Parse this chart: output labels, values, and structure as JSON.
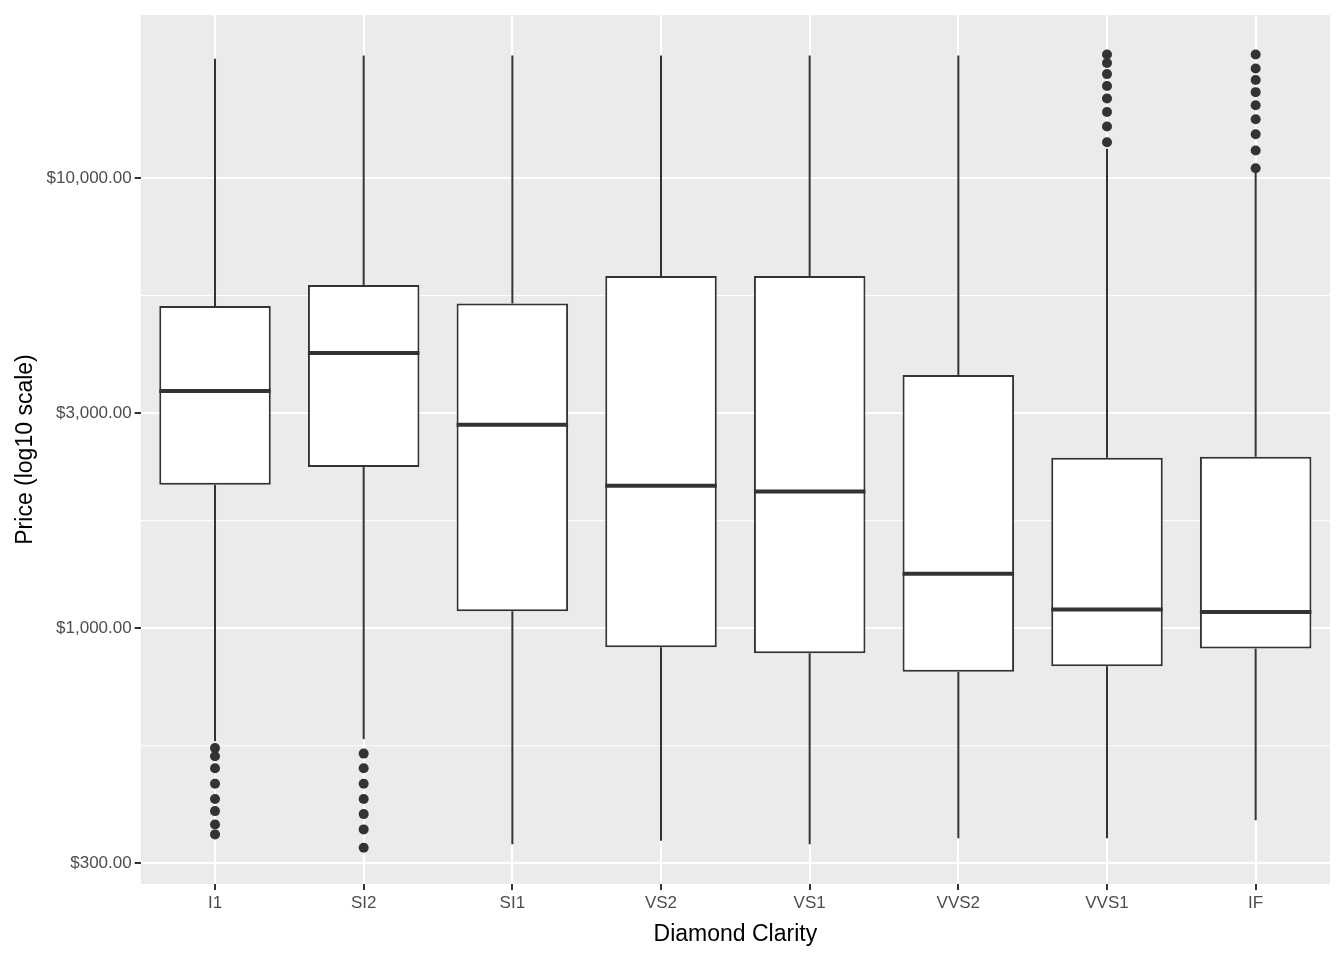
{
  "chart_data": {
    "type": "box",
    "xlabel": "Diamond Clarity",
    "ylabel": "Price (log10 scale)",
    "categories": [
      "I1",
      "SI2",
      "SI1",
      "VS2",
      "VS1",
      "VVS2",
      "VVS1",
      "IF"
    ],
    "boxes": [
      {
        "low": 560,
        "q1": 2080,
        "median": 3360,
        "q3": 5190,
        "high": 18400,
        "outliers": [
          541,
          519,
          488,
          451,
          417,
          392,
          366,
          348
        ]
      },
      {
        "low": 566,
        "q1": 2280,
        "median": 4080,
        "q3": 5780,
        "high": 18700,
        "outliers": [
          526,
          488,
          451,
          417,
          386,
          357,
          325
        ]
      },
      {
        "low": 331,
        "q1": 1090,
        "median": 2830,
        "q3": 5260,
        "high": 18700
      },
      {
        "low": 337,
        "q1": 906,
        "median": 2070,
        "q3": 6050,
        "high": 18700
      },
      {
        "low": 331,
        "q1": 879,
        "median": 2010,
        "q3": 6050,
        "high": 18700
      },
      {
        "low": 341,
        "q1": 800,
        "median": 1320,
        "q3": 3650,
        "high": 18700
      },
      {
        "low": 341,
        "q1": 822,
        "median": 1100,
        "q3": 2390,
        "high": 11600,
        "outliers": [
          12000,
          13000,
          14000,
          15000,
          16000,
          17000,
          18000,
          18800
        ]
      },
      {
        "low": 374,
        "q1": 901,
        "median": 1086,
        "q3": 2400,
        "high": 10300,
        "outliers": [
          10500,
          11500,
          12500,
          13500,
          14500,
          15500,
          16500,
          17500,
          18800
        ]
      }
    ],
    "log": "y",
    "ylim": [
      270,
      23000
    ],
    "yticks": [
      {
        "value": 300,
        "label": "$300.00"
      },
      {
        "value": 1000,
        "label": "$1,000.00"
      },
      {
        "value": 3000,
        "label": "$3,000.00"
      },
      {
        "value": 10000,
        "label": "$10,000.00"
      }
    ],
    "grid": true,
    "legend": false,
    "marker": "circle"
  }
}
